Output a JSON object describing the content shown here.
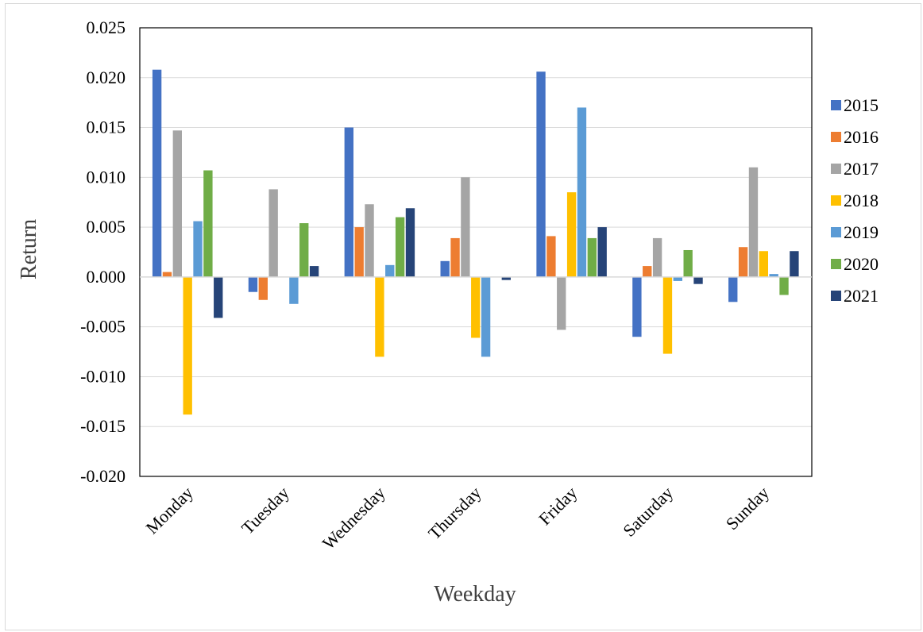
{
  "chart_data": {
    "type": "bar",
    "xlabel": "Weekday",
    "ylabel": "Return",
    "ylim": [
      -0.02,
      0.025
    ],
    "yticks": [
      "0.025",
      "0.020",
      "0.015",
      "0.010",
      "0.005",
      "0.000",
      "-0.005",
      "-0.010",
      "-0.015",
      "-0.020"
    ],
    "ytick_values": [
      0.025,
      0.02,
      0.015,
      0.01,
      0.005,
      0.0,
      -0.005,
      -0.01,
      -0.015,
      -0.02
    ],
    "grid": "horizontal",
    "legend_position": "right",
    "categories": [
      "Monday",
      "Tuesday",
      "Wednesday",
      "Thursday",
      "Friday",
      "Saturday",
      "Sunday"
    ],
    "series": [
      {
        "name": "2015",
        "color": "#4472C4",
        "values": [
          0.0208,
          -0.0015,
          0.015,
          0.0016,
          0.0206,
          -0.006,
          -0.0025
        ]
      },
      {
        "name": "2016",
        "color": "#ED7D31",
        "values": [
          0.0005,
          -0.0023,
          0.005,
          0.0039,
          0.0041,
          0.0011,
          0.003
        ]
      },
      {
        "name": "2017",
        "color": "#A5A5A5",
        "values": [
          0.0147,
          0.0088,
          0.0073,
          0.01,
          -0.0053,
          0.0039,
          0.011
        ]
      },
      {
        "name": "2018",
        "color": "#FFC000",
        "values": [
          -0.0138,
          0.0,
          -0.008,
          -0.0061,
          0.0085,
          -0.0077,
          0.0026
        ]
      },
      {
        "name": "2019",
        "color": "#5B9BD5",
        "values": [
          0.0056,
          -0.0027,
          0.0012,
          -0.008,
          0.017,
          -0.0004,
          0.0003
        ]
      },
      {
        "name": "2020",
        "color": "#70AD47",
        "values": [
          0.0107,
          0.0054,
          0.006,
          0.0,
          0.0039,
          0.0027,
          -0.0018
        ]
      },
      {
        "name": "2021",
        "color": "#264478",
        "values": [
          -0.0041,
          0.0011,
          0.0069,
          -0.0003,
          0.005,
          -0.0007,
          0.0026
        ]
      }
    ]
  }
}
